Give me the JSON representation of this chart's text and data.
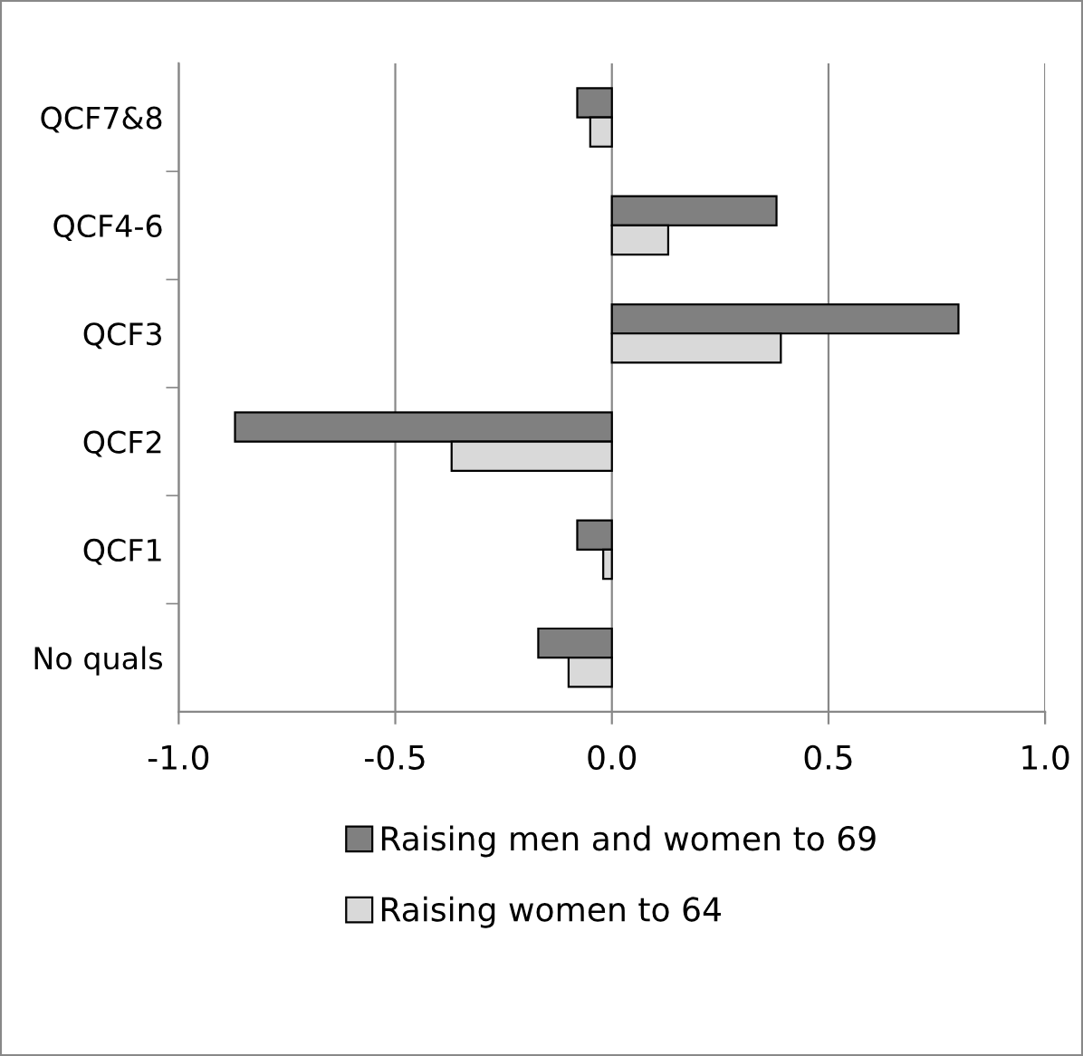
{
  "chart_data": {
    "type": "bar",
    "orientation": "horizontal",
    "categories": [
      "QCF7&8",
      "QCF4-6",
      "QCF3",
      "QCF2",
      "QCF1",
      "No quals"
    ],
    "series": [
      {
        "name": "Raising men and women to 69",
        "color": "#808080",
        "values": [
          -0.08,
          0.38,
          0.8,
          -0.87,
          -0.08,
          -0.17
        ]
      },
      {
        "name": "Raising women to 64",
        "color": "#d9d9d9",
        "values": [
          -0.05,
          0.13,
          0.39,
          -0.37,
          -0.02,
          -0.1
        ]
      }
    ],
    "xlim": [
      -1.0,
      1.0
    ],
    "xticks": [
      {
        "value": -1.0,
        "label": "-1.0"
      },
      {
        "value": -0.5,
        "label": "-0.5"
      },
      {
        "value": 0.0,
        "label": "0.0"
      },
      {
        "value": 0.5,
        "label": "0.5"
      },
      {
        "value": 1.0,
        "label": "1.0"
      }
    ],
    "grid": "x",
    "legend": "bottom"
  }
}
